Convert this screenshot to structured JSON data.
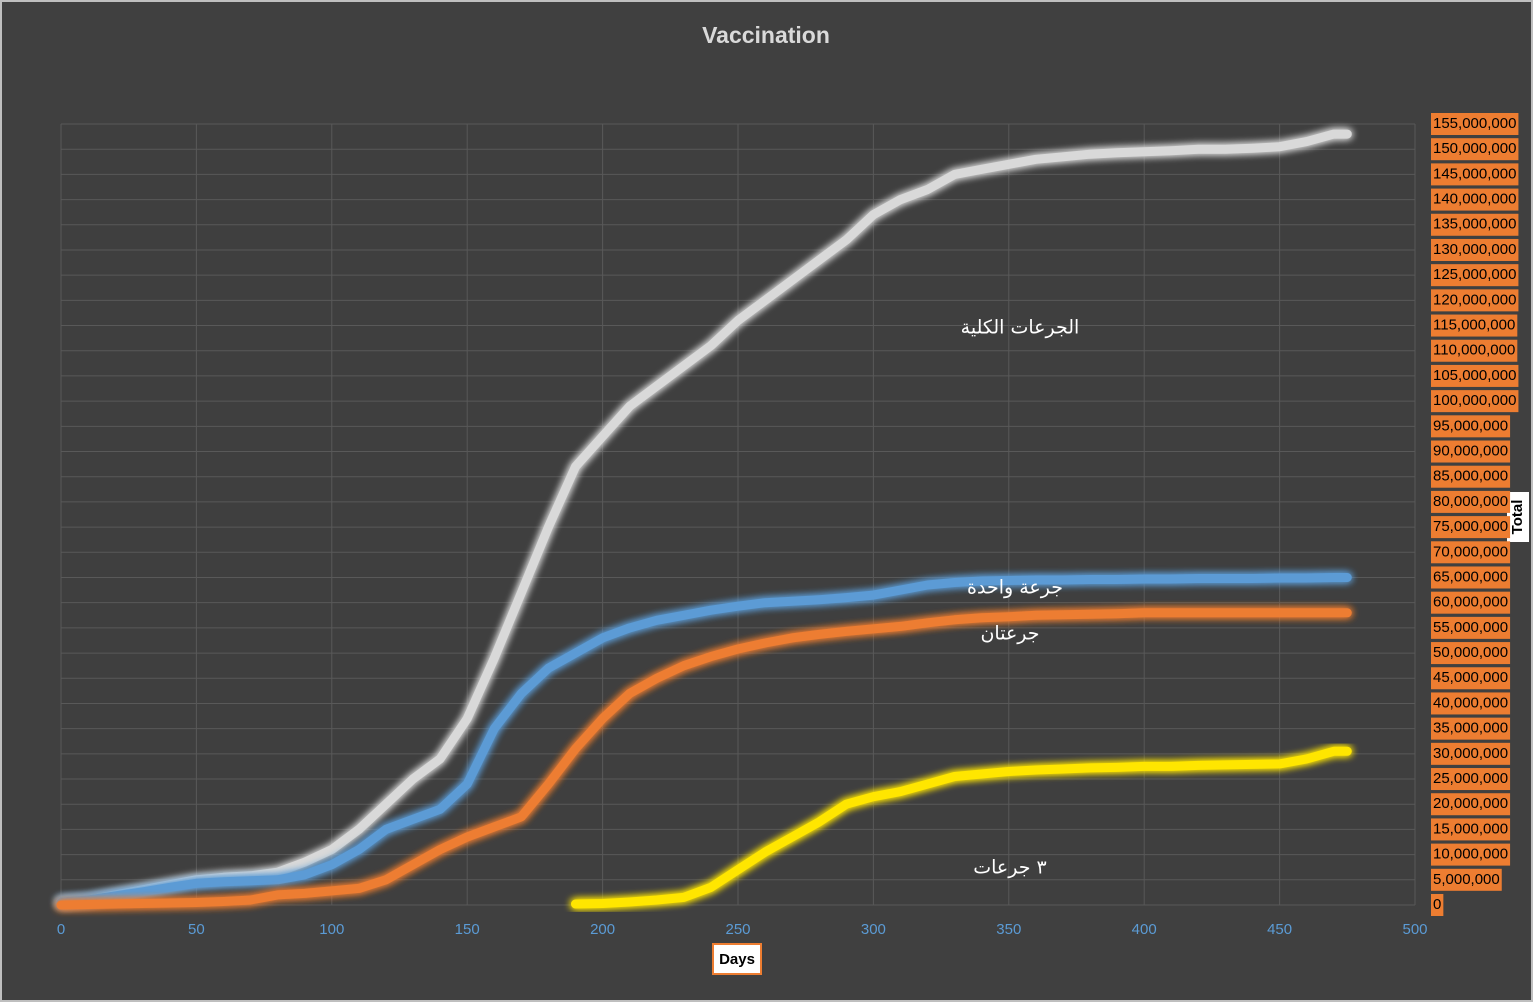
{
  "chart_data": {
    "type": "line",
    "title": "Vaccination",
    "xlabel": "Days",
    "ylabel": "Total",
    "x": [
      0,
      10,
      20,
      30,
      40,
      50,
      60,
      70,
      80,
      90,
      100,
      110,
      120,
      130,
      140,
      150,
      160,
      170,
      180,
      190,
      200,
      210,
      220,
      230,
      240,
      250,
      260,
      270,
      280,
      290,
      300,
      310,
      320,
      330,
      340,
      350,
      360,
      370,
      380,
      390,
      400,
      410,
      420,
      430,
      440,
      450,
      460,
      470,
      475
    ],
    "series": [
      {
        "name": "الجرعات الكلية",
        "color": "#d9d9d9",
        "values": [
          600000,
          1000000,
          2000000,
          3000000,
          4000000,
          5000000,
          5500000,
          5800000,
          6500000,
          8500000,
          11000000,
          15000000,
          20000000,
          25000000,
          29000000,
          37000000,
          49000000,
          62000000,
          75000000,
          87000000,
          93000000,
          99000000,
          103000000,
          107000000,
          111000000,
          116000000,
          120000000,
          124000000,
          128000000,
          132000000,
          137000000,
          140000000,
          142000000,
          145000000,
          146000000,
          147000000,
          148000000,
          148500000,
          149000000,
          149300000,
          149500000,
          149700000,
          150000000,
          150000000,
          150200000,
          150500000,
          151500000,
          153000000,
          153000000
        ]
      },
      {
        "name": "جرعة واحدة",
        "color": "#5b9bd5",
        "values": [
          600000,
          1000000,
          1800000,
          2600000,
          3500000,
          4300000,
          4600000,
          4800000,
          5000000,
          6000000,
          8000000,
          11000000,
          15000000,
          17000000,
          19000000,
          24000000,
          35000000,
          42000000,
          47000000,
          50000000,
          53000000,
          55000000,
          56500000,
          57500000,
          58500000,
          59300000,
          60000000,
          60300000,
          60600000,
          61000000,
          61500000,
          62500000,
          63500000,
          64000000,
          64300000,
          64400000,
          64500000,
          64500000,
          64600000,
          64600000,
          64700000,
          64700000,
          64800000,
          64800000,
          64800000,
          64900000,
          64900000,
          65000000,
          65000000
        ]
      },
      {
        "name": "جرعتان",
        "color": "#ed7d31",
        "values": [
          0,
          100000,
          200000,
          300000,
          400000,
          500000,
          700000,
          1000000,
          2000000,
          2300000,
          2800000,
          3300000,
          5000000,
          8000000,
          11000000,
          13500000,
          15500000,
          17500000,
          24000000,
          31000000,
          37000000,
          42000000,
          45000000,
          47500000,
          49300000,
          50800000,
          52000000,
          53000000,
          53700000,
          54300000,
          54800000,
          55300000,
          56000000,
          56600000,
          57000000,
          57200000,
          57500000,
          57600000,
          57700000,
          57800000,
          58000000,
          58000000,
          58000000,
          58000000,
          58000000,
          58000000,
          58000000,
          58000000,
          58000000
        ]
      },
      {
        "name": "٣ جرعات",
        "color": "#ffe600",
        "values": [
          null,
          null,
          null,
          null,
          null,
          null,
          null,
          null,
          null,
          null,
          null,
          null,
          null,
          null,
          null,
          null,
          null,
          null,
          null,
          200000,
          300000,
          600000,
          1000000,
          1500000,
          3500000,
          7000000,
          10500000,
          13500000,
          16500000,
          20000000,
          21500000,
          22500000,
          24000000,
          25500000,
          26000000,
          26500000,
          26800000,
          27000000,
          27200000,
          27300000,
          27500000,
          27500000,
          27700000,
          27800000,
          27900000,
          28000000,
          29000000,
          30500000,
          30500000
        ]
      }
    ],
    "xlim": [
      0,
      500
    ],
    "xticks": [
      0,
      50,
      100,
      150,
      200,
      250,
      300,
      350,
      400,
      450,
      500
    ],
    "ylim": [
      0,
      155000000
    ],
    "yticks": [
      0,
      {
        "value": 5000000,
        "label": "5,000,000"
      },
      {
        "value": 10000000,
        "label": "10,000,000"
      },
      {
        "value": 15000000,
        "label": "15,000,000"
      },
      {
        "value": 20000000,
        "label": "20,000,000"
      },
      {
        "value": 25000000,
        "label": "25,000,000"
      },
      {
        "value": 30000000,
        "label": "30,000,000"
      },
      {
        "value": 35000000,
        "label": "35,000,000"
      },
      {
        "value": 40000000,
        "label": "40,000,000"
      },
      {
        "value": 45000000,
        "label": "45,000,000"
      },
      {
        "value": 50000000,
        "label": "50,000,000"
      },
      {
        "value": 55000000,
        "label": "55,000,000"
      },
      {
        "value": 60000000,
        "label": "60,000,000"
      },
      {
        "value": 65000000,
        "label": "65,000,000"
      },
      {
        "value": 70000000,
        "label": "70,000,000"
      },
      {
        "value": 75000000,
        "label": "75,000,000"
      },
      {
        "value": 80000000,
        "label": "80,000,000"
      },
      {
        "value": 85000000,
        "label": "85,000,000"
      },
      {
        "value": 90000000,
        "label": "90,000,000"
      },
      {
        "value": 95000000,
        "label": "95,000,000"
      },
      {
        "value": 100000000,
        "label": "100,000,000"
      },
      {
        "value": 105000000,
        "label": "105,000,000"
      },
      {
        "value": 110000000,
        "label": "110,000,000"
      },
      {
        "value": 115000000,
        "label": "115,000,000"
      },
      {
        "value": 120000000,
        "label": "120,000,000"
      },
      {
        "value": 125000000,
        "label": "125,000,000"
      },
      {
        "value": 130000000,
        "label": "130,000,000"
      },
      {
        "value": 135000000,
        "label": "135,000,000"
      },
      {
        "value": 140000000,
        "label": "140,000,000"
      },
      {
        "value": 145000000,
        "label": "145,000,000"
      },
      {
        "value": 150000000,
        "label": "150,000,000"
      },
      {
        "value": 155000000,
        "label": "155,000,000"
      }
    ],
    "grid": true
  }
}
